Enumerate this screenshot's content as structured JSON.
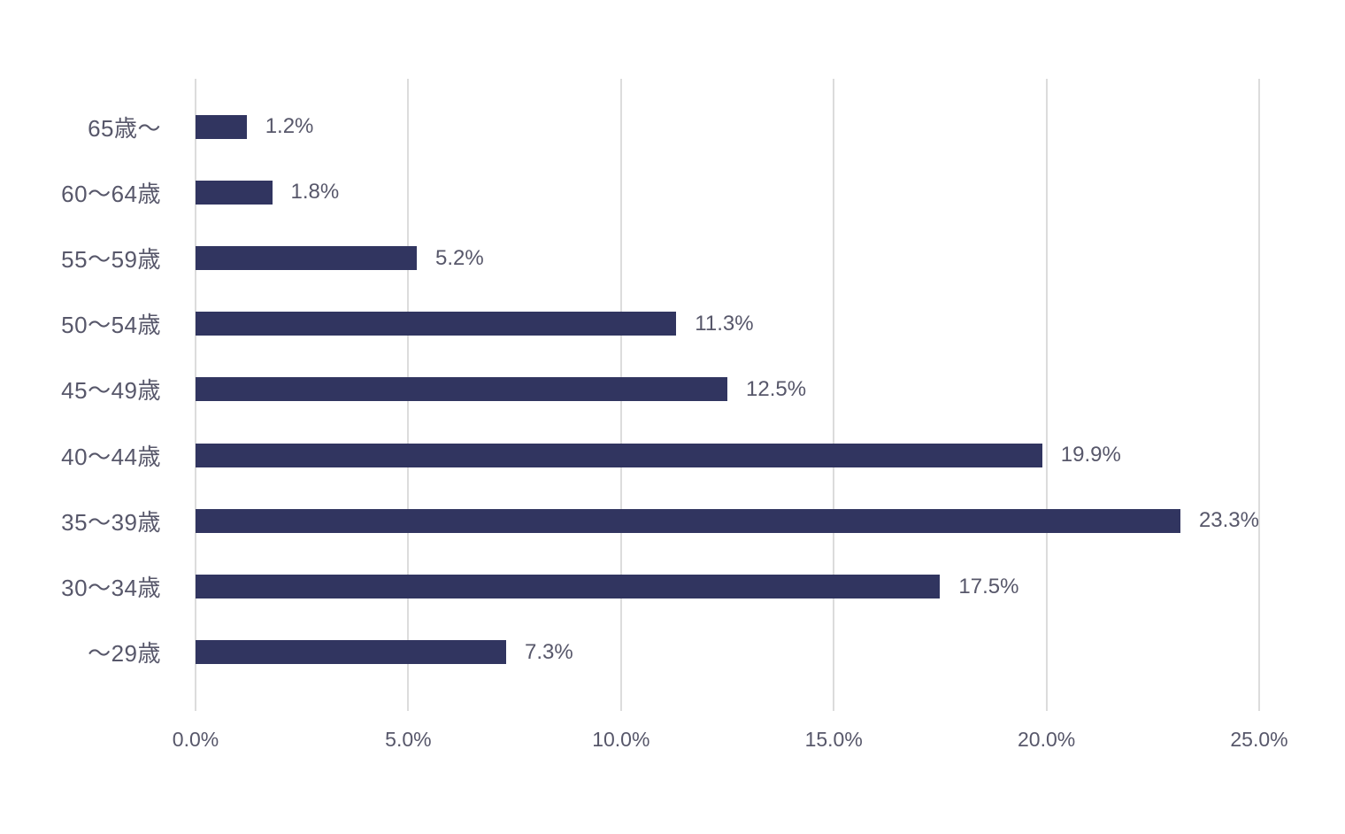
{
  "chart_data": {
    "type": "bar",
    "orientation": "horizontal",
    "title": "",
    "xlabel": "",
    "ylabel": "",
    "categories": [
      "65歳〜",
      "60〜64歳",
      "55〜59歳",
      "50〜54歳",
      "45〜49歳",
      "40〜44歳",
      "35〜39歳",
      "30〜34歳",
      "〜29歳"
    ],
    "values": [
      1.2,
      1.8,
      5.2,
      11.3,
      12.5,
      19.9,
      23.3,
      17.5,
      7.3
    ],
    "value_labels": [
      "1.2%",
      "1.8%",
      "5.2%",
      "11.3%",
      "12.5%",
      "19.9%",
      "23.3%",
      "17.5%",
      "7.3%"
    ],
    "x_ticks": [
      0,
      5,
      10,
      15,
      20,
      25
    ],
    "x_tick_labels": [
      "0.0%",
      "5.0%",
      "10.0%",
      "15.0%",
      "20.0%",
      "25.0%"
    ],
    "xlim": [
      0,
      25
    ],
    "grid": "vertical-only",
    "legend": "none",
    "colors": {
      "bar": "#313560",
      "text": "#57576A",
      "gridline": "#DCDCDC",
      "background": "#FFFFFF"
    }
  }
}
